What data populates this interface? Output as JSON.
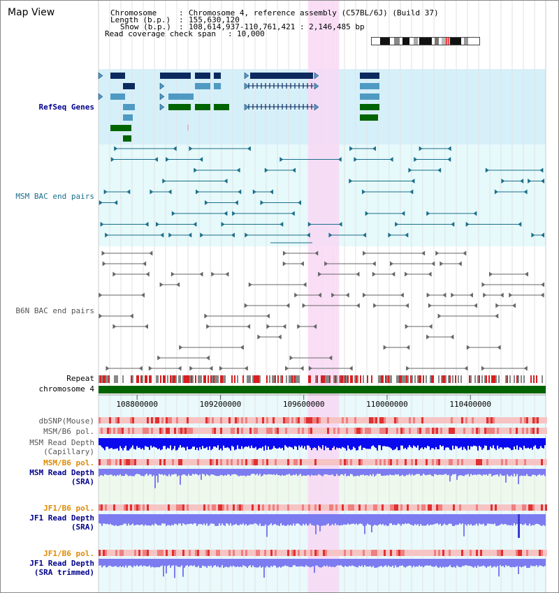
{
  "title": "Map View",
  "header": {
    "chromosome_label": "Chromosome",
    "chromosome_value": "Chromosome 4, reference assembly (C57BL/6J) (Build 37)",
    "length_label": "Length (b.p.)",
    "length_value": "155,630,120",
    "show_label": "Show (b.p.)",
    "show_value": "108,614,937-110,761,421 : 2,146,485 bp",
    "coverage_label": "Read coverage check span",
    "coverage_value": "10,000"
  },
  "tracks": {
    "refseq": "RefSeq Genes",
    "msm_bac": "MSM BAC end pairs",
    "b6n_bac": "B6N BAC end pairs",
    "repeat": "Repeat",
    "chromosome": "chromosome 4",
    "dbsnp": "dbSNP(Mouse)",
    "msm_b6_pol": "MSM/B6 pol.",
    "msm_depth_1": "MSM Read Depth",
    "msm_depth_2": "(Capillary)",
    "msm_b6_pol2": "MSM/B6 pol.",
    "msm_sra_1": "MSM Read Depth",
    "msm_sra_2": "(SRA)",
    "jf1_pol": "JF1/B6 pol.",
    "jf1_depth_1": "JF1 Read Depth",
    "jf1_depth_2": "(SRA)",
    "jf1_pol2": "JF1/B6 pol.",
    "jf1_trim_1": "JF1 Read Depth",
    "jf1_trim_2": "(SRA trimmed)"
  },
  "axis": {
    "ticks": [
      "108800000",
      "109200000",
      "109600000",
      "110000000",
      "110400000"
    ],
    "tick_values": [
      108800000,
      109200000,
      109600000,
      110000000,
      110400000
    ],
    "range_start": 108614937,
    "range_end": 110761421
  },
  "highlight": {
    "start": 109620000,
    "end": 109770000
  },
  "colors": {
    "refseq_bg": "#d6f0fa",
    "msm_bg": "#e6f9fb",
    "depth_bg": "#eaf9fb",
    "sra_bg": "#eef9ee",
    "highlight": "#f8d8f4",
    "gene_dark": "#0c2a5e",
    "gene_mid": "#4f9ac3",
    "gene_green": "#006400",
    "msm_line": "#1a6e8a",
    "b6n_line": "#666666",
    "repeat_red": "#d82020",
    "chrom_green": "#006400",
    "capillary_blue": "#0a0aee",
    "sra_blue": "#7c7cf0",
    "label_navy": "#00008b",
    "label_teal": "#1a6e8a",
    "label_gray": "#555555",
    "label_orange": "#e08a00"
  }
}
